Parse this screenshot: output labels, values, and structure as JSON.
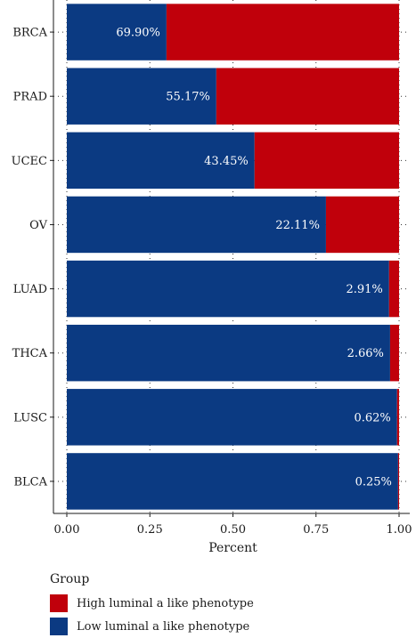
{
  "chart_data": {
    "type": "bar",
    "orientation": "horizontal",
    "stacked": true,
    "categories": [
      "BRCA",
      "PRAD",
      "UCEC",
      "OV",
      "LUAD",
      "THCA",
      "LUSC",
      "BLCA"
    ],
    "series": [
      {
        "name": "Low luminal a like phenotype",
        "color": "#0b3a82",
        "values": [
          0.3,
          0.45,
          0.565,
          0.78,
          0.97,
          0.973,
          0.994,
          0.997
        ]
      },
      {
        "name": "High luminal a like phenotype",
        "color": "#c0000b",
        "values": [
          0.7,
          0.55,
          0.435,
          0.22,
          0.03,
          0.027,
          0.006,
          0.003
        ]
      }
    ],
    "data_labels": [
      "69.90%",
      "55.17%",
      "43.45%",
      "22.11%",
      "2.91%",
      "2.66%",
      "0.62%",
      "0.25%"
    ],
    "xlabel": "Percent",
    "ylabel": "",
    "xlim": [
      0,
      1
    ],
    "x_ticks": [
      "0.00",
      "0.25",
      "0.50",
      "0.75",
      "1.00"
    ],
    "grid": "dotted",
    "legend_position": "bottom-left"
  },
  "legend": {
    "title": "Group",
    "items": [
      {
        "label": "High luminal a like phenotype",
        "color": "#c0000b"
      },
      {
        "label": "Low luminal a like phenotype",
        "color": "#0b3a82"
      }
    ]
  }
}
